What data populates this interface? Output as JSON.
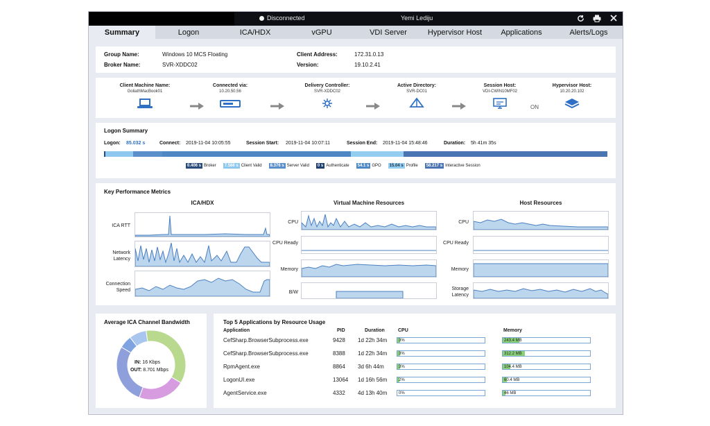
{
  "titlebar": {
    "status": "Disconnected",
    "user": "Yemi Lediju",
    "icons": [
      "refresh-icon",
      "print-icon",
      "close-icon"
    ]
  },
  "tabs": [
    "Summary",
    "Logon",
    "ICA/HDX",
    "vGPU",
    "VDI Server",
    "Hypervisor Host",
    "Applications",
    "Alerts/Logs"
  ],
  "session_info": {
    "group_name_label": "Group Name:",
    "group_name": "Windows 10 MCS Floating",
    "broker_name_label": "Broker Name:",
    "broker_name": "SVR-XDDC02",
    "client_address_label": "Client Address:",
    "client_address": "172.31.0.13",
    "version_label": "Version:",
    "version": "19.10.2.41"
  },
  "chain": [
    {
      "title": "Client Machine Name:",
      "value": "GoliathMacBook01",
      "icon": "laptop-icon"
    },
    {
      "title": "Connected via:",
      "value": "10.20.50.56",
      "icon": "gateway-icon"
    },
    {
      "title": "Delivery Controller:",
      "value": "SVR-XDDC02",
      "icon": "controller-icon"
    },
    {
      "title": "Active Directory:",
      "value": "SVR-DC01",
      "icon": "directory-icon"
    },
    {
      "title": "Session Host:",
      "value": "VDI-CWIN10MF02",
      "icon": "monitor-icon"
    },
    {
      "title": "Hypervisor Host:",
      "value": "10.20.20.102",
      "icon": "layers-icon"
    }
  ],
  "chain_on_label": "ON",
  "logon_summary": {
    "title": "Logon Summary",
    "logon_label": "Logon:",
    "logon": "85.032 s",
    "connect_label": "Connect:",
    "connect": "2019-11-04 10:05:55",
    "session_start_label": "Session Start:",
    "session_start": "2019-11-04 10:07:11",
    "session_end_label": "Session End:",
    "session_end": "2019-11-04 15:48:46",
    "duration_label": "Duration:",
    "duration": "5h 41m 35s",
    "legend": [
      {
        "value": "0.406 s",
        "name": "Broker",
        "color": "#2a4a7a"
      },
      {
        "value": "7.586 s",
        "name": "Client Valid",
        "color": "#8ec8ee"
      },
      {
        "value": "8.376 s",
        "name": "Server Valid",
        "color": "#5b8fc9"
      },
      {
        "value": "0 s",
        "name": "Authenticate",
        "color": "#1f3f6f"
      },
      {
        "value": "54.1 s",
        "name": "GPO",
        "color": "#4d88c4"
      },
      {
        "value": "15.04 s",
        "name": "Profile",
        "color": "#93cdef"
      },
      {
        "value": "58.217 s",
        "name": "Interactive Session",
        "color": "#4a74b2"
      }
    ]
  },
  "kpm": {
    "title": "Key Performance Metrics",
    "columns": [
      {
        "title": "ICA/HDX",
        "metrics": [
          "ICA RTT",
          "Network Latency",
          "Connection Speed"
        ]
      },
      {
        "title": "Virtual Machine Resources",
        "metrics": [
          "CPU",
          "CPU Ready",
          "Memory",
          "B/W"
        ]
      },
      {
        "title": "Host Resources",
        "metrics": [
          "CPU",
          "CPU Ready",
          "Memory",
          "Storage Latency"
        ]
      }
    ]
  },
  "bandwidth": {
    "title": "Average ICA Channel Bandwidth",
    "in_label": "IN:",
    "in": "16 Kbps",
    "out_label": "OUT:",
    "out": "8.701 Mbps",
    "slices": [
      {
        "value": 36,
        "color": "#b9d98f"
      },
      {
        "value": 22,
        "color": "#d79be0"
      },
      {
        "value": 28,
        "color": "#8f9fdc"
      },
      {
        "value": 6,
        "color": "#7fa3e0"
      },
      {
        "value": 8,
        "color": "#a9c6ef"
      }
    ]
  },
  "apps": {
    "title": "Top 5 Applications by Resource Usage",
    "headers": {
      "application": "Application",
      "pid": "PID",
      "duration": "Duration",
      "cpu": "CPU",
      "memory": "Memory"
    },
    "rows": [
      {
        "name": "CefSharp.BrowserSubprocess.exe",
        "pid": "9428",
        "duration": "1d 22h 34m",
        "cpu": "3%",
        "cpu_frac": 0.03,
        "memory": "243.4 MB",
        "mem_frac": 0.19
      },
      {
        "name": "CefSharp.BrowserSubprocess.exe",
        "pid": "8388",
        "duration": "1d 22h 34m",
        "cpu": "3%",
        "cpu_frac": 0.03,
        "memory": "312.2 MB",
        "mem_frac": 0.25
      },
      {
        "name": "RpmAgent.exe",
        "pid": "8864",
        "duration": "3d 6h 44m",
        "cpu": "3%",
        "cpu_frac": 0.03,
        "memory": "104.4 MB",
        "mem_frac": 0.09
      },
      {
        "name": "LogonUI.exe",
        "pid": "13064",
        "duration": "1d 16h 56m",
        "cpu": "2%",
        "cpu_frac": 0.02,
        "memory": "60.4 MB",
        "mem_frac": 0.05
      },
      {
        "name": "AgentService.exe",
        "pid": "4332",
        "duration": "4d 13h 40m",
        "cpu": "0%",
        "cpu_frac": 0.0,
        "memory": "46 MB",
        "mem_frac": 0.03
      }
    ]
  }
}
